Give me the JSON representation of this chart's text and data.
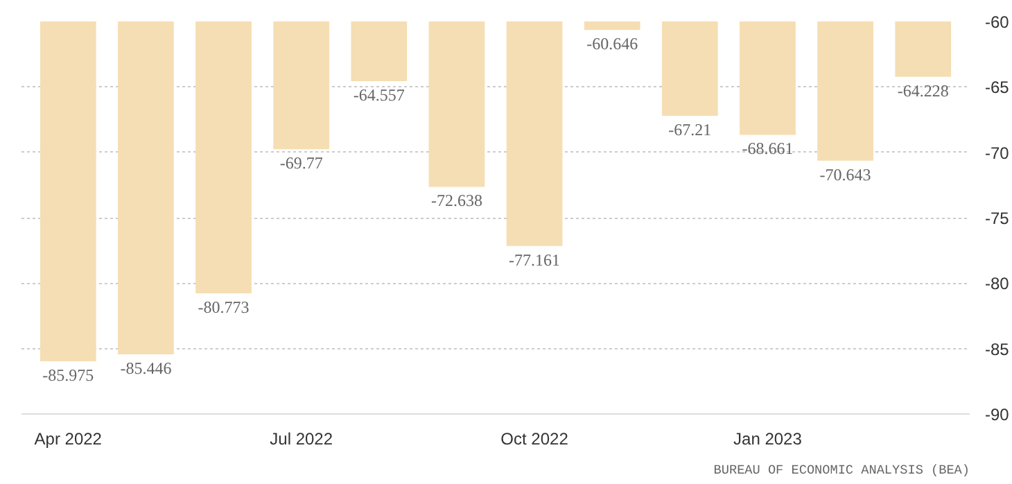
{
  "chart_data": {
    "type": "bar",
    "categories": [
      "Apr 2022",
      null,
      null,
      "Jul 2022",
      null,
      null,
      "Oct 2022",
      null,
      null,
      "Jan 2023",
      null,
      null
    ],
    "values": [
      -85.975,
      -85.446,
      -80.773,
      -69.77,
      -64.557,
      -72.638,
      -77.161,
      -60.646,
      -67.21,
      -68.661,
      -70.643,
      -64.228
    ],
    "color": "#f5deb3",
    "data_labels": true,
    "ylim": [
      -90,
      -60
    ],
    "yticks": [
      -90,
      -85,
      -80,
      -75,
      -70,
      -65,
      -60
    ],
    "grid": "y",
    "annotations": [
      "BUREAU OF ECONOMIC ANALYSIS (BEA)"
    ]
  }
}
